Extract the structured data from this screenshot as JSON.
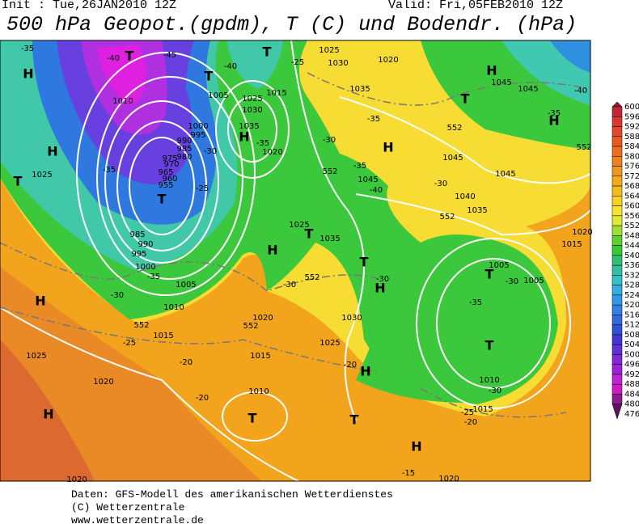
{
  "header": {
    "init": "Init : Tue,26JAN2010 12Z",
    "valid": "Valid: Fri,05FEB2010 12Z",
    "title": "500 hPa Geopot.(gpdm), T (C) und Bodendr. (hPa)"
  },
  "map_labels": [
    "H",
    "H",
    "H",
    "H",
    "H",
    "H",
    "H",
    "H",
    "H",
    "H",
    "H",
    "H",
    "T",
    "T",
    "T",
    "T",
    "T",
    "T",
    "T",
    "T",
    "T",
    "T",
    "T",
    "T",
    "1025",
    "1010",
    "1005",
    "1025",
    "1030",
    "1035",
    "1020",
    "1015",
    "1000",
    "995",
    "990",
    "985",
    "980",
    "975",
    "970",
    "965",
    "960",
    "955",
    "985",
    "990",
    "995",
    "1000",
    "1005",
    "1010",
    "1015",
    "1025",
    "1020",
    "1010",
    "1020",
    "1015",
    "1025",
    "1030",
    "1035",
    "1025",
    "1030",
    "1025",
    "1020",
    "1035",
    "1045",
    "1045",
    "1045",
    "1040",
    "1035",
    "1045",
    "1045",
    "1015",
    "1020",
    "1005",
    "1005",
    "1010",
    "1015",
    "1020",
    "1020",
    "-35",
    "-40",
    "-45",
    "-40",
    "-25",
    "-35",
    "-30",
    "-35",
    "-30",
    "-25",
    "-35",
    "-35",
    "-30",
    "-30",
    "-30",
    "-35",
    "-30",
    "-25",
    "-20",
    "-20",
    "-20",
    "-30",
    "-25",
    "-20",
    "-15",
    "-35",
    "-40",
    "-30",
    "-40",
    "-35",
    "552",
    "552",
    "552",
    "552",
    "552",
    "552",
    "552"
  ],
  "colorbar": {
    "levels": [
      600,
      596,
      592,
      588,
      584,
      580,
      576,
      572,
      568,
      564,
      560,
      556,
      552,
      548,
      544,
      540,
      536,
      532,
      528,
      524,
      520,
      516,
      512,
      508,
      504,
      500,
      496,
      492,
      488,
      484,
      480,
      476
    ],
    "colors": [
      "#a01830",
      "#c02838",
      "#d83830",
      "#e04828",
      "#e85a20",
      "#ee6e20",
      "#f08020",
      "#f29420",
      "#f4a81c",
      "#f6bc1c",
      "#f8d020",
      "#f8e42c",
      "#e0e830",
      "#a0e030",
      "#60d030",
      "#38c838",
      "#30c070",
      "#30c0a0",
      "#30c0c8",
      "#30b0e0",
      "#3098e8",
      "#3080e8",
      "#3068e0",
      "#3050d8",
      "#4038d0",
      "#6030d8",
      "#8028d8",
      "#a020d8",
      "#c020d8",
      "#d018c8",
      "#901890",
      "#601060"
    ]
  },
  "footer": [
    "Daten: GFS-Modell des amerikanischen Wetterdienstes",
    "(C) Wetterzentrale",
    "www.wetterzentrale.de"
  ]
}
